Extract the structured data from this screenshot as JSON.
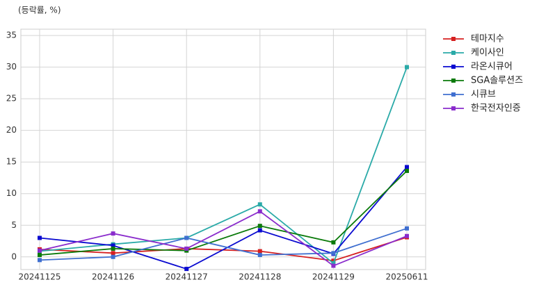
{
  "chart_data": {
    "type": "line",
    "y_label": "(등락률, %)",
    "categories": [
      "20241125",
      "20241126",
      "20241127",
      "20241128",
      "20241129",
      "20250611"
    ],
    "series": [
      {
        "name": "테마지수",
        "color": "#d62020",
        "values": [
          1.2,
          0.6,
          1.3,
          0.9,
          -0.6,
          3.1
        ]
      },
      {
        "name": "케이사인",
        "color": "#2aaaa8",
        "values": [
          0.9,
          2.0,
          3.0,
          8.3,
          -1.0,
          30.0
        ]
      },
      {
        "name": "라온시큐어",
        "color": "#0a0ad0",
        "values": [
          3.0,
          1.8,
          -1.9,
          4.2,
          0.5,
          14.2
        ]
      },
      {
        "name": "SGA솔루션즈",
        "color": "#0a7a0a",
        "values": [
          0.3,
          1.3,
          1.0,
          4.9,
          2.3,
          13.6
        ]
      },
      {
        "name": "시큐브",
        "color": "#3f6fd0",
        "values": [
          -0.5,
          0.0,
          3.0,
          0.3,
          0.6,
          4.5
        ]
      },
      {
        "name": "한국전자인증",
        "color": "#8a2ccc",
        "values": [
          1.0,
          3.7,
          1.3,
          7.2,
          -1.4,
          3.3
        ]
      }
    ],
    "ylim": [
      -2,
      36
    ],
    "yticks": [
      0,
      5,
      10,
      15,
      20,
      25,
      30,
      35
    ],
    "grid": true
  }
}
